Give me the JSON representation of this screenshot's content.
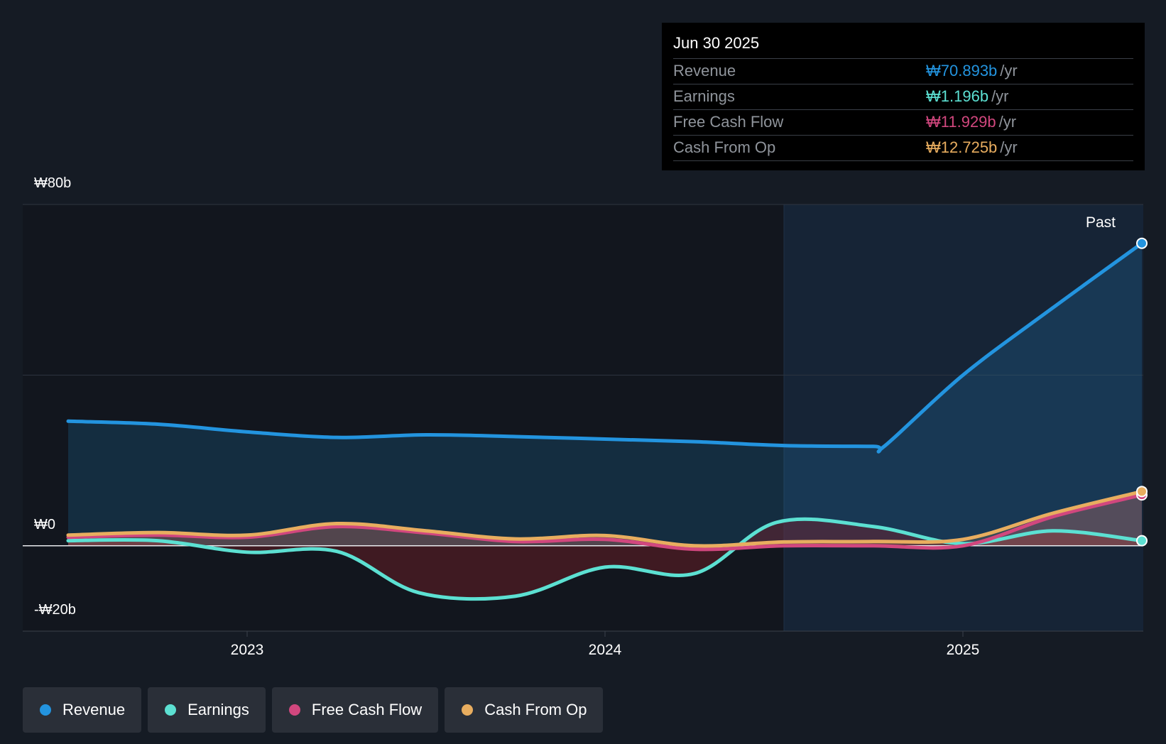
{
  "chart_data": {
    "type": "area",
    "title": "",
    "y_tick_labels": [
      "₩80b",
      "₩0",
      "-₩20b"
    ],
    "ylim": [
      -20,
      80
    ],
    "x_tick_labels": [
      "2023",
      "2024",
      "2025"
    ],
    "x_ticks": [
      2023.0,
      2024.0,
      2025.0
    ],
    "xlim": [
      2022.37,
      2025.5
    ],
    "region_label": "Past",
    "past_start": 2024.5,
    "series": [
      {
        "name": "Revenue",
        "color": "#2394df",
        "points": [
          [
            2022.5,
            29.2
          ],
          [
            2022.75,
            28.5
          ],
          [
            2023.0,
            26.7
          ],
          [
            2023.25,
            25.4
          ],
          [
            2023.5,
            26.0
          ],
          [
            2023.75,
            25.6
          ],
          [
            2024.0,
            25.0
          ],
          [
            2024.25,
            24.4
          ],
          [
            2024.5,
            23.5
          ],
          [
            2024.75,
            23.3
          ],
          [
            2024.78,
            23.3
          ],
          [
            2025.0,
            40.0
          ],
          [
            2025.25,
            55.7
          ],
          [
            2025.5,
            70.9
          ]
        ]
      },
      {
        "name": "Earnings",
        "color": "#5ce0d2",
        "points": [
          [
            2022.5,
            1.2
          ],
          [
            2022.75,
            1.2
          ],
          [
            2023.0,
            -1.5
          ],
          [
            2023.25,
            -1.3
          ],
          [
            2023.48,
            -11.0
          ],
          [
            2023.75,
            -11.8
          ],
          [
            2024.0,
            -5.0
          ],
          [
            2024.25,
            -6.5
          ],
          [
            2024.48,
            5.5
          ],
          [
            2024.75,
            4.5
          ],
          [
            2025.0,
            0.5
          ],
          [
            2025.25,
            3.5
          ],
          [
            2025.5,
            1.196
          ]
        ]
      },
      {
        "name": "Free Cash Flow",
        "color": "#d1477e",
        "points": [
          [
            2022.5,
            2.0
          ],
          [
            2022.75,
            2.5
          ],
          [
            2023.0,
            2.0
          ],
          [
            2023.25,
            4.5
          ],
          [
            2023.5,
            3.0
          ],
          [
            2023.75,
            1.0
          ],
          [
            2024.0,
            1.5
          ],
          [
            2024.25,
            -0.8
          ],
          [
            2024.5,
            0.0
          ],
          [
            2024.75,
            0.0
          ],
          [
            2025.0,
            0.0
          ],
          [
            2025.25,
            6.8
          ],
          [
            2025.5,
            11.929
          ]
        ]
      },
      {
        "name": "Cash From Op",
        "color": "#e8ad5f",
        "points": [
          [
            2022.5,
            2.5
          ],
          [
            2022.75,
            3.1
          ],
          [
            2023.0,
            2.5
          ],
          [
            2023.25,
            5.2
          ],
          [
            2023.5,
            3.5
          ],
          [
            2023.75,
            1.6
          ],
          [
            2024.0,
            2.4
          ],
          [
            2024.25,
            0.0
          ],
          [
            2024.5,
            0.9
          ],
          [
            2024.75,
            1.0
          ],
          [
            2025.0,
            1.5
          ],
          [
            2025.25,
            7.6
          ],
          [
            2025.5,
            12.725
          ]
        ]
      }
    ]
  },
  "tooltip": {
    "date": "Jun 30 2025",
    "rows": [
      {
        "label": "Revenue",
        "value": "₩70.893b",
        "unit": "/yr",
        "color": "#2394df"
      },
      {
        "label": "Earnings",
        "value": "₩1.196b",
        "unit": "/yr",
        "color": "#5ce0d2"
      },
      {
        "label": "Free Cash Flow",
        "value": "₩11.929b",
        "unit": "/yr",
        "color": "#d1477e"
      },
      {
        "label": "Cash From Op",
        "value": "₩12.725b",
        "unit": "/yr",
        "color": "#e8ad5f"
      }
    ]
  },
  "legend": [
    {
      "label": "Revenue",
      "color": "#2394df"
    },
    {
      "label": "Earnings",
      "color": "#5ce0d2"
    },
    {
      "label": "Free Cash Flow",
      "color": "#d1477e"
    },
    {
      "label": "Cash From Op",
      "color": "#e8ad5f"
    }
  ]
}
